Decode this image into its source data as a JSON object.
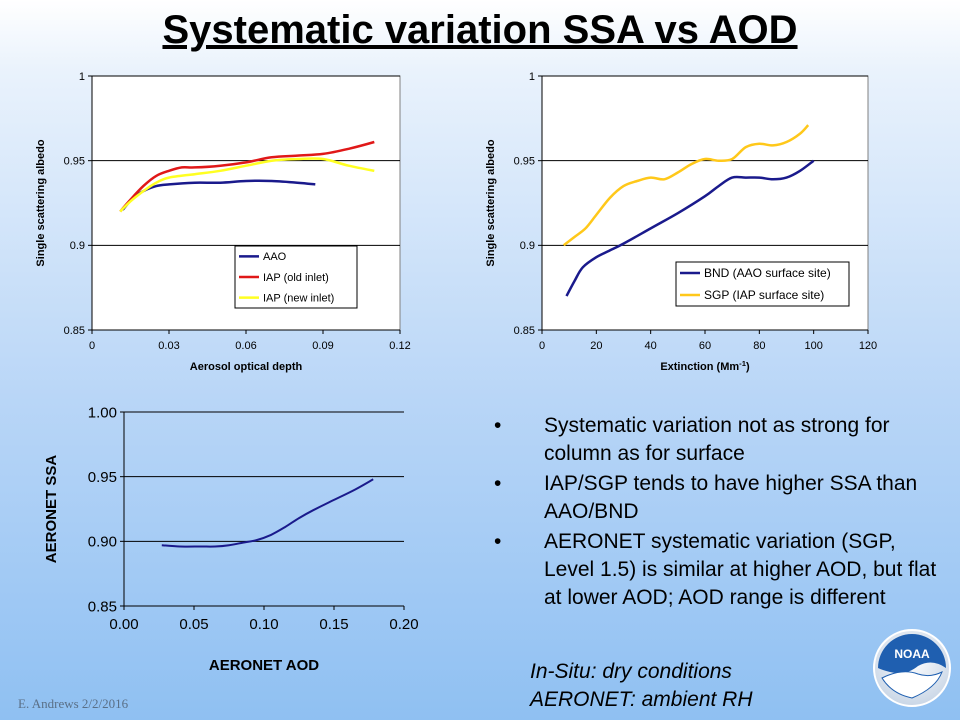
{
  "title": "Systematic variation SSA vs AOD",
  "chart_data": [
    {
      "type": "line",
      "xlabel": "Aerosol optical depth",
      "ylabel": "Single scattering albedo",
      "xlim": [
        0,
        0.12
      ],
      "ylim": [
        0.85,
        1
      ],
      "x_ticks": [
        "0",
        "0.03",
        "0.06",
        "0.09",
        "0.12"
      ],
      "y_ticks": [
        "0.85",
        "0.9",
        "0.95",
        "1"
      ],
      "legend_position": "bottom-right",
      "series": [
        {
          "name": "AAO",
          "color": "#1a1a8c",
          "x": [
            0.012,
            0.016,
            0.02,
            0.025,
            0.03,
            0.04,
            0.05,
            0.06,
            0.07,
            0.08,
            0.087
          ],
          "y": [
            0.921,
            0.928,
            0.932,
            0.935,
            0.936,
            0.937,
            0.937,
            0.938,
            0.938,
            0.937,
            0.936
          ]
        },
        {
          "name": "IAP (old inlet)",
          "color": "#e01818",
          "x": [
            0.011,
            0.015,
            0.02,
            0.025,
            0.03,
            0.035,
            0.04,
            0.05,
            0.06,
            0.07,
            0.08,
            0.09,
            0.1,
            0.11
          ],
          "y": [
            0.92,
            0.927,
            0.935,
            0.941,
            0.944,
            0.946,
            0.946,
            0.947,
            0.949,
            0.952,
            0.953,
            0.954,
            0.957,
            0.961
          ]
        },
        {
          "name": "IAP (new inlet)",
          "color": "#ffff22",
          "x": [
            0.011,
            0.015,
            0.02,
            0.025,
            0.03,
            0.04,
            0.05,
            0.06,
            0.07,
            0.08,
            0.09,
            0.1,
            0.11
          ],
          "y": [
            0.92,
            0.926,
            0.932,
            0.937,
            0.94,
            0.942,
            0.944,
            0.947,
            0.95,
            0.951,
            0.951,
            0.947,
            0.944
          ]
        }
      ]
    },
    {
      "type": "line",
      "xlabel": "Extinction (Mm-1)",
      "ylabel": "Single scattering albedo",
      "xlim": [
        0,
        120
      ],
      "ylim": [
        0.85,
        1
      ],
      "x_ticks": [
        "0",
        "20",
        "40",
        "60",
        "80",
        "100",
        "120"
      ],
      "y_ticks": [
        "0.85",
        "0.9",
        "0.95",
        "1"
      ],
      "legend_position": "bottom-right",
      "series": [
        {
          "name": "BND (AAO surface site)",
          "color": "#1a1a8c",
          "x": [
            9,
            12,
            15,
            20,
            25,
            30,
            40,
            50,
            60,
            65,
            70,
            75,
            80,
            85,
            90,
            95,
            100
          ],
          "y": [
            0.87,
            0.879,
            0.887,
            0.893,
            0.897,
            0.901,
            0.91,
            0.919,
            0.929,
            0.935,
            0.94,
            0.94,
            0.94,
            0.939,
            0.94,
            0.944,
            0.95
          ]
        },
        {
          "name": "SGP (IAP surface site)",
          "color": "#ffc81a",
          "x": [
            8,
            12,
            16,
            20,
            25,
            30,
            35,
            40,
            45,
            50,
            55,
            60,
            65,
            70,
            75,
            80,
            85,
            90,
            95,
            98
          ],
          "y": [
            0.9,
            0.905,
            0.91,
            0.918,
            0.928,
            0.935,
            0.938,
            0.94,
            0.939,
            0.943,
            0.948,
            0.951,
            0.95,
            0.951,
            0.958,
            0.96,
            0.959,
            0.961,
            0.966,
            0.971
          ]
        }
      ]
    },
    {
      "type": "line",
      "xlabel": "AERONET AOD",
      "ylabel": "AERONET SSA",
      "xlim": [
        0,
        0.2
      ],
      "ylim": [
        0.85,
        1
      ],
      "x_ticks": [
        "0.00",
        "0.05",
        "0.10",
        "0.15",
        "0.20"
      ],
      "y_ticks": [
        "0.85",
        "0.90",
        "0.95",
        "1.00"
      ],
      "series": [
        {
          "color": "#1a1a8c",
          "x": [
            0.027,
            0.04,
            0.055,
            0.065,
            0.075,
            0.085,
            0.095,
            0.105,
            0.115,
            0.125,
            0.135,
            0.15,
            0.165,
            0.178
          ],
          "y": [
            0.897,
            0.896,
            0.896,
            0.896,
            0.897,
            0.899,
            0.901,
            0.905,
            0.911,
            0.918,
            0.924,
            0.932,
            0.94,
            0.948
          ]
        }
      ]
    }
  ],
  "bullets": [
    "Systematic variation not as strong for column as for surface",
    "IAP/SGP tends to have higher SSA than AAO/BND",
    "AERONET systematic variation (SGP, Level 1.5) is similar at higher AOD, but flat at lower AOD; AOD range is different"
  ],
  "notes": [
    "In-Situ: dry conditions",
    "AERONET: ambient RH"
  ],
  "footer": "E. Andrews   2/2/2016",
  "logo_text": "NOAA"
}
